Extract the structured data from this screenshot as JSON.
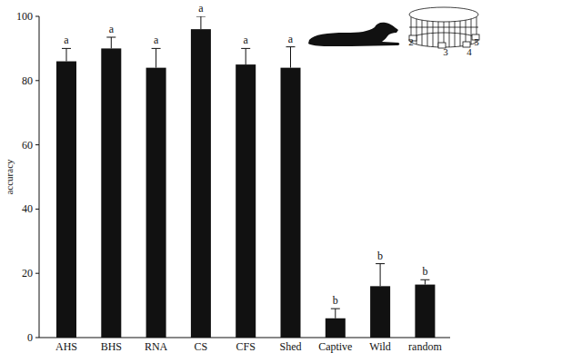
{
  "chart_data": {
    "type": "bar",
    "y_label": "accuracy",
    "categories": [
      "AHS",
      "BHS",
      "RNA",
      "CS",
      "CFS",
      "Shed",
      "Captive",
      "Wild",
      "random"
    ],
    "values": [
      86,
      90,
      84,
      96,
      85,
      84,
      6,
      16,
      16.5
    ],
    "errors": [
      4,
      3.5,
      6,
      4,
      5,
      6.5,
      3,
      7,
      1.5
    ],
    "letters": [
      "a",
      "a",
      "a",
      "a",
      "a",
      "a",
      "b",
      "b",
      "b"
    ],
    "annotations": [
      "2",
      "3",
      "4",
      "5"
    ],
    "color": "#111111",
    "ylim": [
      0,
      100
    ],
    "yticks": [
      0,
      20,
      40,
      60,
      80,
      100
    ],
    "grid": false
  }
}
